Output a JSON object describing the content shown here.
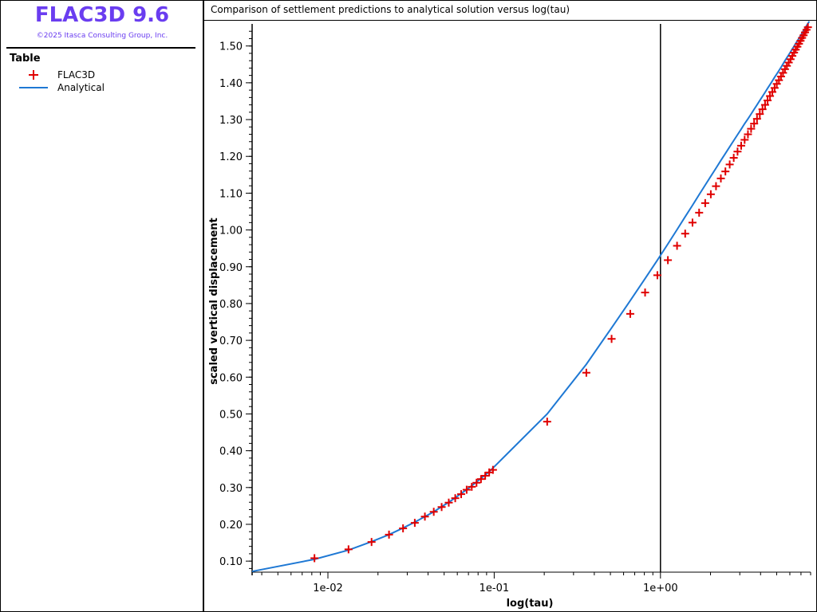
{
  "app": {
    "title": "FLAC3D 9.6",
    "copyright": "©2025 Itasca Consulting Group, Inc."
  },
  "legend": {
    "title": "Table",
    "items": [
      {
        "label": "FLAC3D",
        "symbol": "plus",
        "color": "#e00000"
      },
      {
        "label": "Analytical",
        "symbol": "line",
        "color": "#1e78d4"
      }
    ]
  },
  "colors": {
    "accent": "#6a3df0",
    "marker": "#e00000",
    "line": "#1e78d4"
  },
  "chart_data": {
    "type": "scatter",
    "title": "Comparison of settlement predictions to analytical solution versus log(tau)",
    "xlabel": "log(tau)",
    "ylabel": "scaled vertical displacement",
    "xscale": "log",
    "xlim": [
      0.0035,
      8.0
    ],
    "ylim": [
      0.07,
      1.56
    ],
    "x_ticks": [
      {
        "value": 0.01,
        "label": "1e-02"
      },
      {
        "value": 0.1,
        "label": "1e-01"
      },
      {
        "value": 1.0,
        "label": "1e+00"
      }
    ],
    "y_ticks": [
      {
        "value": 0.1,
        "label": "0.10"
      },
      {
        "value": 0.2,
        "label": "0.20"
      },
      {
        "value": 0.3,
        "label": "0.30"
      },
      {
        "value": 0.4,
        "label": "0.40"
      },
      {
        "value": 0.5,
        "label": "0.50"
      },
      {
        "value": 0.6,
        "label": "0.60"
      },
      {
        "value": 0.7,
        "label": "0.70"
      },
      {
        "value": 0.8,
        "label": "0.80"
      },
      {
        "value": 0.9,
        "label": "0.90"
      },
      {
        "value": 1.0,
        "label": "1.00"
      },
      {
        "value": 1.1,
        "label": "1.10"
      },
      {
        "value": 1.2,
        "label": "1.20"
      },
      {
        "value": 1.3,
        "label": "1.30"
      },
      {
        "value": 1.4,
        "label": "1.40"
      },
      {
        "value": 1.5,
        "label": "1.50"
      }
    ],
    "reference_line_x": 1.0,
    "grid": false,
    "series": [
      {
        "name": "FLAC3D",
        "marker": "plus",
        "color": "#e00000",
        "x": [
          0.0083,
          0.0133,
          0.0183,
          0.0233,
          0.0283,
          0.0333,
          0.0383,
          0.0433,
          0.0483,
          0.0533,
          0.0583,
          0.0633,
          0.0683,
          0.0733,
          0.0783,
          0.0833,
          0.0883,
          0.0933,
          0.0983,
          0.2083,
          0.3583,
          0.5083,
          0.6583,
          0.8083,
          0.9583,
          1.1083,
          1.2583,
          1.4083,
          1.5583,
          1.7083,
          1.8583,
          2.0083,
          2.1583,
          2.3083,
          2.4583,
          2.6083,
          2.7583,
          2.9083,
          3.0583,
          3.2083,
          3.3583,
          3.5083,
          3.6583,
          3.8083,
          3.9583,
          4.1083,
          4.2583,
          4.4083,
          4.5583,
          4.7083,
          4.8583,
          5.0083,
          5.1583,
          5.3083,
          5.4583,
          5.6083,
          5.7583,
          5.9083,
          6.0583,
          6.2083,
          6.3583,
          6.5083,
          6.6583,
          6.8083,
          6.9583,
          7.1083,
          7.2583,
          7.4083,
          7.5583,
          7.7083
        ],
        "y": [
          0.108,
          0.132,
          0.152,
          0.172,
          0.189,
          0.204,
          0.221,
          0.234,
          0.247,
          0.259,
          0.271,
          0.282,
          0.294,
          0.302,
          0.313,
          0.323,
          0.332,
          0.341,
          0.348,
          0.479,
          0.612,
          0.704,
          0.772,
          0.83,
          0.877,
          0.918,
          0.957,
          0.99,
          1.02,
          1.047,
          1.073,
          1.097,
          1.119,
          1.14,
          1.159,
          1.178,
          1.196,
          1.213,
          1.229,
          1.245,
          1.26,
          1.275,
          1.289,
          1.302,
          1.315,
          1.328,
          1.34,
          1.352,
          1.364,
          1.375,
          1.386,
          1.397,
          1.407,
          1.417,
          1.427,
          1.437,
          1.446,
          1.455,
          1.464,
          1.473,
          1.482,
          1.49,
          1.498,
          1.506,
          1.514,
          1.522,
          1.529,
          1.537,
          1.544,
          1.551
        ]
      },
      {
        "name": "Analytical",
        "marker": "line",
        "color": "#1e78d4",
        "x": [
          0.0035,
          0.0083,
          0.0133,
          0.0183,
          0.0233,
          0.0283,
          0.0333,
          0.0383,
          0.0433,
          0.0483,
          0.0533,
          0.0583,
          0.0633,
          0.0683,
          0.0733,
          0.0783,
          0.0833,
          0.0883,
          0.0933,
          0.0983,
          0.2083,
          0.3583,
          0.5083,
          0.6583,
          0.8083,
          0.9583,
          1.1083,
          1.2583,
          1.4083,
          1.5583,
          1.7083,
          1.8583,
          2.0083,
          2.1583,
          2.3083,
          2.4583,
          2.6083,
          2.7583,
          2.9083,
          3.0583,
          3.2083,
          3.3583,
          3.5083,
          3.6583,
          3.8083,
          3.9583,
          4.1083,
          4.2583,
          4.4083,
          4.5583,
          4.7083,
          4.8583,
          5.0083,
          5.1583,
          5.3083,
          5.4583,
          5.6083,
          5.7583,
          5.9083,
          6.0583,
          6.2083,
          6.3583,
          6.5083,
          6.6583,
          6.8083,
          6.9583,
          7.1083,
          7.2583,
          7.4083,
          7.5583,
          7.7083,
          7.85
        ],
        "y": [
          0.072,
          0.105,
          0.13,
          0.153,
          0.172,
          0.19,
          0.206,
          0.221,
          0.234,
          0.248,
          0.26,
          0.272,
          0.284,
          0.294,
          0.305,
          0.315,
          0.325,
          0.334,
          0.343,
          0.353,
          0.5,
          0.635,
          0.734,
          0.808,
          0.868,
          0.918,
          0.962,
          1.001,
          1.036,
          1.067,
          1.096,
          1.122,
          1.146,
          1.168,
          1.189,
          1.208,
          1.226,
          1.243,
          1.259,
          1.274,
          1.289,
          1.302,
          1.315,
          1.328,
          1.34,
          1.352,
          1.363,
          1.374,
          1.385,
          1.395,
          1.405,
          1.415,
          1.424,
          1.433,
          1.442,
          1.451,
          1.46,
          1.468,
          1.476,
          1.484,
          1.492,
          1.499,
          1.507,
          1.514,
          1.521,
          1.528,
          1.535,
          1.542,
          1.548,
          1.555,
          1.561,
          1.567
        ]
      }
    ]
  }
}
